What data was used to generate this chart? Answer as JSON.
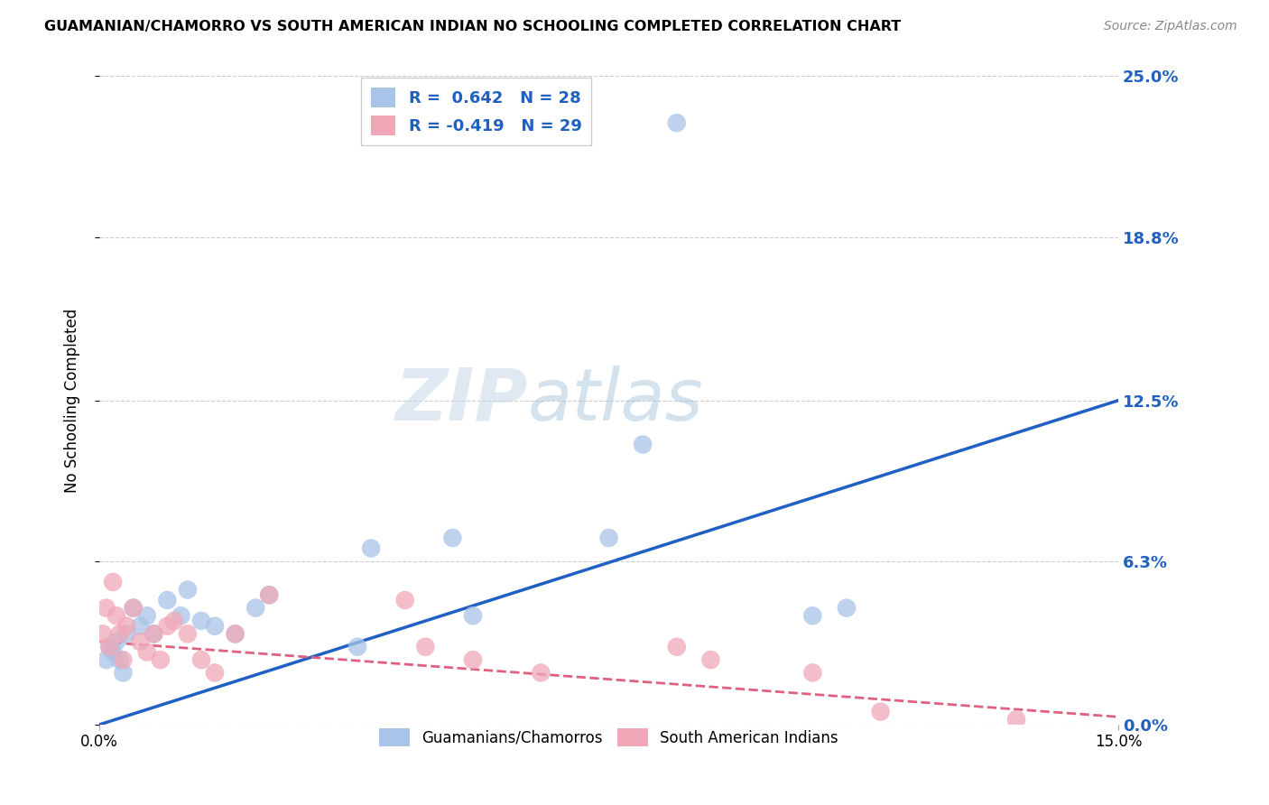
{
  "title": "GUAMANIAN/CHAMORRO VS SOUTH AMERICAN INDIAN NO SCHOOLING COMPLETED CORRELATION CHART",
  "source": "Source: ZipAtlas.com",
  "ylabel": "No Schooling Completed",
  "xlabel_ticks": [
    "0.0%",
    "15.0%"
  ],
  "ytick_labels": [
    "0.0%",
    "6.3%",
    "12.5%",
    "18.8%",
    "25.0%"
  ],
  "ytick_values": [
    0.0,
    6.3,
    12.5,
    18.8,
    25.0
  ],
  "xlim": [
    0.0,
    15.0
  ],
  "ylim": [
    0.0,
    25.0
  ],
  "blue_R": 0.642,
  "blue_N": 28,
  "pink_R": -0.419,
  "pink_N": 29,
  "blue_color": "#a8c4e8",
  "pink_color": "#f0a8b8",
  "blue_line_color": "#2060c0",
  "pink_line_color": "#e06080",
  "legend_blue_label": "Guamanians/Chamorros",
  "legend_pink_label": "South American Indians",
  "watermark_zip": "ZIP",
  "watermark_atlas": "atlas",
  "blue_scatter_x": [
    0.1,
    0.15,
    0.2,
    0.25,
    0.3,
    0.35,
    0.4,
    0.5,
    0.6,
    0.7,
    0.8,
    1.0,
    1.2,
    1.3,
    1.5,
    1.7,
    2.0,
    2.3,
    2.5,
    3.8,
    4.0,
    5.2,
    5.5,
    7.5,
    8.0,
    8.5,
    10.5,
    11.0
  ],
  "blue_scatter_y": [
    2.5,
    3.0,
    2.8,
    3.2,
    2.5,
    2.0,
    3.5,
    4.5,
    3.8,
    4.2,
    3.5,
    4.8,
    4.2,
    5.2,
    4.0,
    3.8,
    3.5,
    4.5,
    5.0,
    3.0,
    6.8,
    7.2,
    4.2,
    7.2,
    10.8,
    23.2,
    4.2,
    4.5
  ],
  "pink_scatter_x": [
    0.05,
    0.1,
    0.15,
    0.2,
    0.25,
    0.3,
    0.35,
    0.4,
    0.5,
    0.6,
    0.7,
    0.8,
    0.9,
    1.0,
    1.1,
    1.3,
    1.5,
    1.7,
    2.0,
    2.5,
    4.5,
    4.8,
    5.5,
    6.5,
    8.5,
    9.0,
    10.5,
    11.5,
    13.5
  ],
  "pink_scatter_y": [
    3.5,
    4.5,
    3.0,
    5.5,
    4.2,
    3.5,
    2.5,
    3.8,
    4.5,
    3.2,
    2.8,
    3.5,
    2.5,
    3.8,
    4.0,
    3.5,
    2.5,
    2.0,
    3.5,
    5.0,
    4.8,
    3.0,
    2.5,
    2.0,
    3.0,
    2.5,
    2.0,
    0.5,
    0.2
  ]
}
